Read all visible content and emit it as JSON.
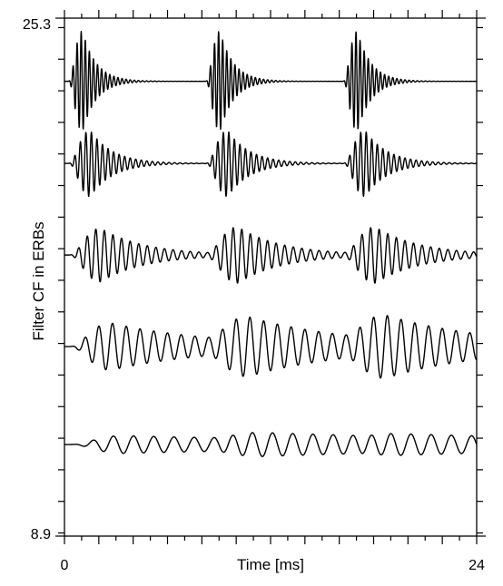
{
  "chart_data": {
    "type": "line",
    "title": "",
    "xlabel": "Time [ms]",
    "ylabel": "Filter CF in ERBs",
    "xlim": [
      0,
      24
    ],
    "ylim": [
      8.9,
      25.3
    ],
    "x_tick_labels": [
      "0",
      "24"
    ],
    "y_tick_labels": [
      "25.3",
      "8.9"
    ],
    "grid": false,
    "legend": "none",
    "line_color": "#000000",
    "period_ms": 8,
    "series": [
      {
        "baseline_erb": 23.3,
        "carrier_cycles_per_ms": 4.2,
        "peak_amplitude_erb": 1.6,
        "envelope_peak_ms": 0.85,
        "decay_ms": 0.8
      },
      {
        "baseline_erb": 20.7,
        "carrier_cycles_per_ms": 3.1,
        "peak_amplitude_erb": 1.05,
        "envelope_peak_ms": 1.3,
        "decay_ms": 1.3
      },
      {
        "baseline_erb": 17.8,
        "carrier_cycles_per_ms": 2.0,
        "peak_amplitude_erb": 0.85,
        "envelope_peak_ms": 1.9,
        "decay_ms": 2.6
      },
      {
        "baseline_erb": 14.9,
        "carrier_cycles_per_ms": 1.25,
        "peak_amplitude_erb": 0.75,
        "envelope_peak_ms": 2.5,
        "decay_ms": 6.0
      },
      {
        "baseline_erb": 11.8,
        "carrier_cycles_per_ms": 0.85,
        "peak_amplitude_erb": 0.28,
        "envelope_peak_ms": 3.2,
        "decay_ms": 20.0
      }
    ]
  }
}
